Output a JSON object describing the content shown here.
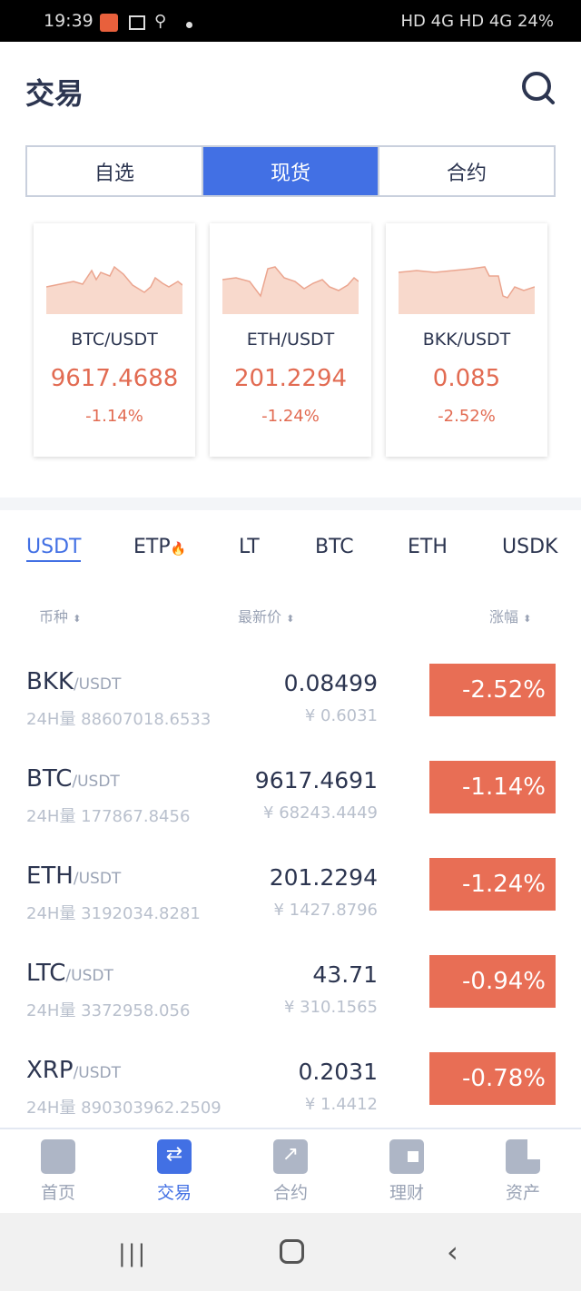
{
  "status_bar": {
    "time": "19:39",
    "right": "HD 4G HD 4G 24%"
  },
  "header": {
    "title": "交易"
  },
  "segments": [
    {
      "label": "自选",
      "active": false
    },
    {
      "label": "现货",
      "active": true
    },
    {
      "label": "合约",
      "active": false
    }
  ],
  "cards": [
    {
      "pair": "BTC/USDT",
      "price": "9617.4688",
      "change": "-1.14%"
    },
    {
      "pair": "ETH/USDT",
      "price": "201.2294",
      "change": "-1.24%"
    },
    {
      "pair": "BKK/USDT",
      "price": "0.085",
      "change": "-2.52%"
    }
  ],
  "quote_tabs": [
    {
      "label": "USDT",
      "active": true
    },
    {
      "label": "ETP",
      "hot": true
    },
    {
      "label": "LT"
    },
    {
      "label": "BTC"
    },
    {
      "label": "ETH"
    },
    {
      "label": "USDK"
    }
  ],
  "columns": {
    "coin": "币种",
    "price": "最新价",
    "change": "涨幅"
  },
  "rows": [
    {
      "base": "BKK",
      "quote": "/USDT",
      "volume": "24H量 88607018.6533",
      "price": "0.08499",
      "cny": "¥ 0.6031",
      "change": "-2.52%"
    },
    {
      "base": "BTC",
      "quote": "/USDT",
      "volume": "24H量 177867.8456",
      "price": "9617.4691",
      "cny": "¥ 68243.4449",
      "change": "-1.14%"
    },
    {
      "base": "ETH",
      "quote": "/USDT",
      "volume": "24H量 3192034.8281",
      "price": "201.2294",
      "cny": "¥ 1427.8796",
      "change": "-1.24%"
    },
    {
      "base": "LTC",
      "quote": "/USDT",
      "volume": "24H量 3372958.056",
      "price": "43.71",
      "cny": "¥ 310.1565",
      "change": "-0.94%"
    },
    {
      "base": "XRP",
      "quote": "/USDT",
      "volume": "24H量 890303962.2509",
      "price": "0.2031",
      "cny": "¥ 1.4412",
      "change": "-0.78%"
    }
  ],
  "bottom_nav": [
    {
      "label": "首页"
    },
    {
      "label": "交易",
      "active": true
    },
    {
      "label": "合约"
    },
    {
      "label": "理财"
    },
    {
      "label": "资产"
    }
  ],
  "colors": {
    "accent": "#4270e4",
    "down": "#e86e55"
  }
}
